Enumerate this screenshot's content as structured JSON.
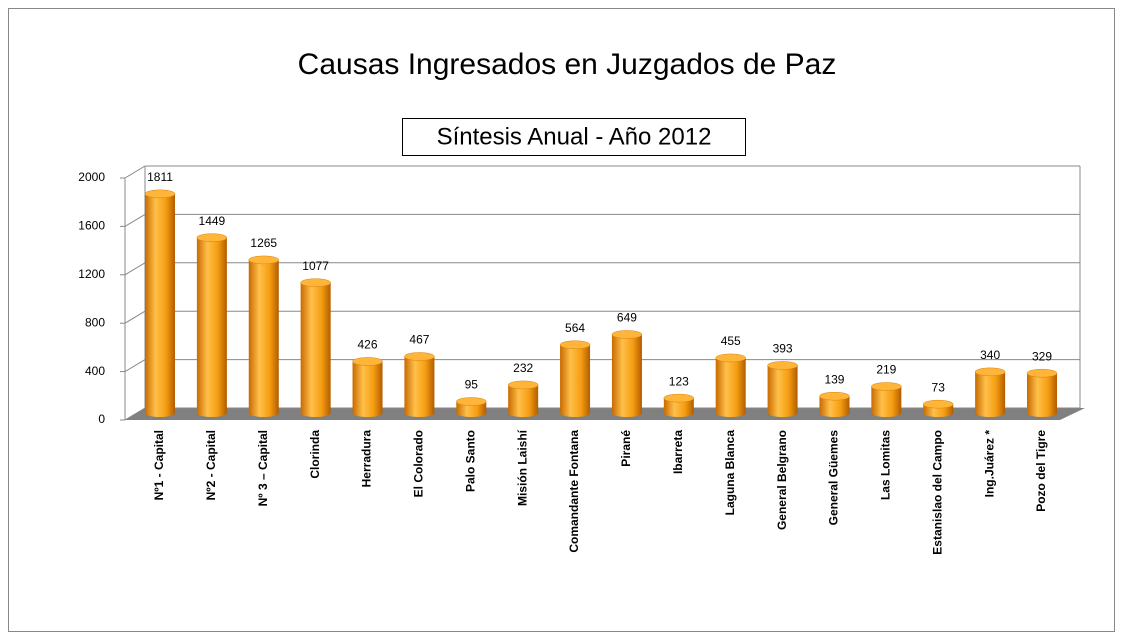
{
  "chart_data": {
    "type": "bar",
    "title": "Causas Ingresados en Juzgados de Paz",
    "subtitle": "Síntesis Anual - Año 2012",
    "categories": [
      "Nº1 - Capital",
      "Nº2 - Capital",
      "Nº 3 – Capital",
      "Clorinda",
      "Herradura",
      "El Colorado",
      "Palo Santo",
      "Misión Laishí",
      "Comandante Fontana",
      "Pirané",
      "Ibarreta",
      "Laguna Blanca",
      "General Belgrano",
      "General Güemes",
      "Las Lomitas",
      "Estanislao del Campo",
      "Ing.Juárez *",
      "Pozo del Tigre"
    ],
    "values": [
      1811,
      1449,
      1265,
      1077,
      426,
      467,
      95,
      232,
      564,
      649,
      123,
      455,
      393,
      139,
      219,
      73,
      340,
      329
    ],
    "color": "#f59d12",
    "ylim": [
      0,
      2000
    ],
    "yticks": [
      0,
      400,
      800,
      1200,
      1600,
      2000
    ],
    "grid": true
  }
}
